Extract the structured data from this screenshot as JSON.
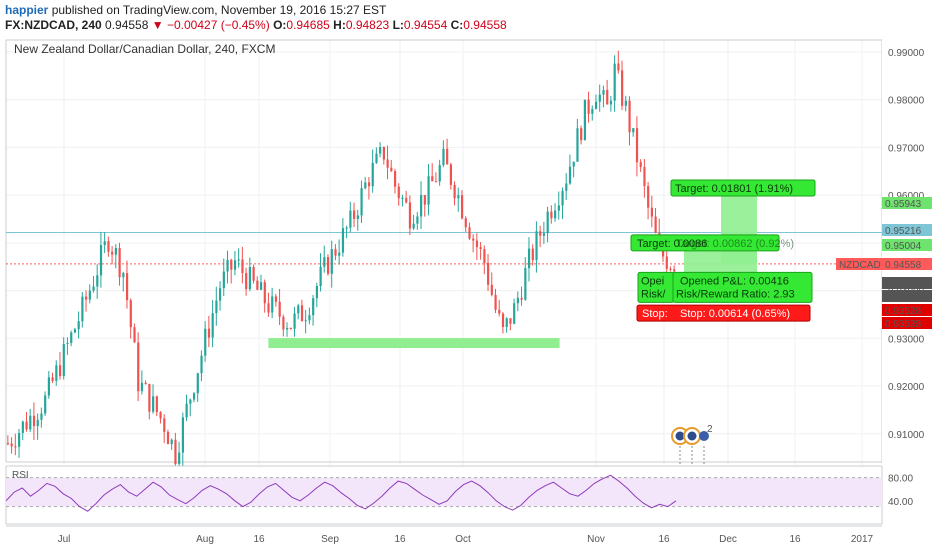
{
  "header": {
    "author": "happier",
    "published_text": "published on TradingView.com, November 19, 2016 15:27 EST",
    "symbol_interval": "FX:NZDCAD, 240",
    "last_price": "0.94558",
    "change": "▼ −0.00427 (−0.45%)",
    "o_label": "O:",
    "o_value": "0.94685",
    "h_label": "H:",
    "h_value": "0.94823",
    "l_label": "L:",
    "l_value": "0.94554",
    "c_label": "C:",
    "c_value": "0.94558"
  },
  "chart_data": {
    "type": "candlestick",
    "title": "New Zealand Dollar/Canadian Dollar, 240, FXCM",
    "ylim": [
      0.9045,
      0.9925
    ],
    "y_ticks": [
      0.91,
      0.92,
      0.93,
      0.94,
      0.95,
      0.96,
      0.97,
      0.98,
      0.99
    ],
    "x_tick_labels": [
      "Jul",
      "Aug",
      "16",
      "Sep",
      "16",
      "Oct",
      "Nov",
      "16",
      "Dec",
      "16",
      "2017"
    ],
    "price_path": [
      [
        0,
        0.908
      ],
      [
        10,
        0.917
      ],
      [
        20,
        0.936
      ],
      [
        27,
        0.951
      ],
      [
        31,
        0.944
      ],
      [
        35,
        0.921
      ],
      [
        42,
        0.912
      ],
      [
        45,
        0.906
      ],
      [
        50,
        0.921
      ],
      [
        57,
        0.941
      ],
      [
        61,
        0.946
      ],
      [
        64,
        0.943
      ],
      [
        70,
        0.937
      ],
      [
        76,
        0.933
      ],
      [
        80,
        0.936
      ],
      [
        86,
        0.946
      ],
      [
        92,
        0.954
      ],
      [
        97,
        0.964
      ],
      [
        101,
        0.969
      ],
      [
        104,
        0.962
      ],
      [
        108,
        0.956
      ],
      [
        113,
        0.961
      ],
      [
        117,
        0.967
      ],
      [
        120,
        0.962
      ],
      [
        125,
        0.951
      ],
      [
        128,
        0.946
      ],
      [
        131,
        0.936
      ],
      [
        133,
        0.931
      ],
      [
        136,
        0.936
      ],
      [
        140,
        0.946
      ],
      [
        145,
        0.956
      ],
      [
        150,
        0.964
      ],
      [
        155,
        0.977
      ],
      [
        158,
        0.982
      ],
      [
        161,
        0.978
      ],
      [
        163,
        0.986
      ],
      [
        166,
        0.978
      ],
      [
        169,
        0.968
      ],
      [
        172,
        0.957
      ],
      [
        175,
        0.948
      ],
      [
        178,
        0.946
      ]
    ],
    "series_color": "#26a69a",
    "down_color": "#ef5350",
    "levels": [
      {
        "name": "NZDCAD",
        "value": 0.94558,
        "label": "0.94558",
        "color": "#ff5a5a",
        "style": "dotted"
      },
      {
        "name": "horizontal-line",
        "value": 0.95216,
        "label": "0.95216",
        "color": "#7ec6d6",
        "style": "solid"
      }
    ],
    "support_zone": {
      "x_start": 70,
      "x_end": 145,
      "value": 0.929,
      "color": "#90ee90"
    },
    "axis_markers": [
      {
        "label": "0.95943",
        "value": 0.95943,
        "color": "#6ee36e",
        "text_color": "#111"
      },
      {
        "label": "0.95216",
        "value": 0.95216,
        "color": "#7ec6d6",
        "text_color": "#111"
      },
      {
        "label": "0.95004",
        "value": 0.95004,
        "color": "#6ee36e",
        "text_color": "#111"
      },
      {
        "label": "NZDCAD",
        "value": 0.94558,
        "color": "#ff5a5a",
        "text_color": "#fff"
      },
      {
        "label": "0.94558",
        "value": 0.94558,
        "color": "#ff5a5a",
        "text_color": "#fff"
      },
      {
        "label": "0.94142",
        "value": 0.94142,
        "color": "#555555",
        "text_color": "#fff"
      },
      {
        "label": "0.94142",
        "value": 0.94142,
        "color": "#555555",
        "text_color": "#fff"
      },
      {
        "label": "0.93528",
        "value": 0.93528,
        "color": "#e00000",
        "text_color": "#fff"
      },
      {
        "label": "0.93528",
        "value": 0.93528,
        "color": "#e00000",
        "text_color": "#fff"
      }
    ],
    "trade_boxes": [
      {
        "label": "Target: 0.01801 (1.91%)",
        "kind": "target",
        "value": 0.9615
      },
      {
        "label": "Target: 0.00862 (0.92%)",
        "kind": "target",
        "value": 0.95
      },
      {
        "label": "Opened P&L: 0.00416",
        "kind": "info",
        "value": 0.9415
      },
      {
        "label": "Risk/Reward Ratio: 2.93",
        "kind": "info",
        "value": 0.9397
      },
      {
        "label": "Stop: 0.00614 (0.65%)",
        "kind": "stop",
        "value": 0.9361
      }
    ],
    "overlapped_fragments": {
      "target_front": "Target: 0.0086",
      "info_front_1": "Opei",
      "info_front_2": "Risk/",
      "stop_front": "Stop:"
    },
    "event_markers": [
      {
        "label": "2"
      }
    ],
    "rsi": {
      "label": "RSI",
      "ticks": [
        "80.00",
        "40.00"
      ],
      "range": [
        0,
        100
      ],
      "upper": 80,
      "lower": 30,
      "values": [
        40,
        55,
        62,
        48,
        58,
        70,
        65,
        52,
        44,
        30,
        22,
        35,
        50,
        60,
        68,
        55,
        48,
        60,
        72,
        64,
        50,
        42,
        35,
        45,
        58,
        66,
        60,
        52,
        40,
        30,
        38,
        52,
        64,
        70,
        58,
        46,
        40,
        50,
        62,
        72,
        66,
        54,
        44,
        32,
        26,
        36,
        48,
        62,
        74,
        70,
        60,
        50,
        42,
        34,
        40,
        56,
        68,
        74,
        66,
        54,
        40,
        30,
        24,
        32,
        46,
        58,
        66,
        72,
        62,
        52,
        48,
        58,
        70,
        78,
        84,
        74,
        62,
        48,
        36,
        28,
        34,
        30,
        40
      ]
    }
  }
}
